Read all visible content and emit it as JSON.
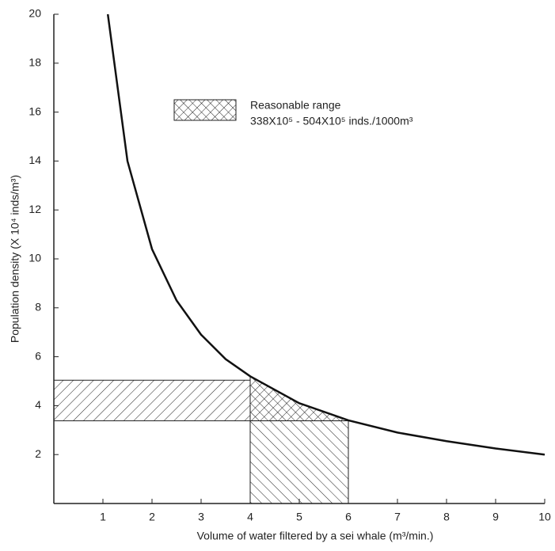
{
  "chart_data": {
    "type": "line",
    "xlabel": "Volume of water filtered by a sei whale (m³/min.)",
    "ylabel": "Population density (X 10⁴ inds/m³)",
    "x": [
      1.1,
      1.5,
      2,
      2.5,
      3,
      3.5,
      4,
      5,
      6,
      7,
      8,
      9,
      10
    ],
    "series": [
      {
        "color": "#111111",
        "values": [
          20,
          14,
          10.4,
          8.3,
          6.9,
          5.9,
          5.2,
          4.1,
          3.4,
          2.9,
          2.55,
          2.25,
          2.0
        ]
      }
    ],
    "xlim": [
      0,
      10
    ],
    "ylim": [
      0,
      20
    ],
    "xticks": [
      1,
      2,
      3,
      4,
      5,
      6,
      7,
      8,
      9,
      10
    ],
    "yticks": [
      2,
      4,
      6,
      8,
      10,
      12,
      14,
      16,
      18,
      20
    ],
    "legend": {
      "label": "Reasonable range",
      "sublabel": "338X10⁵ - 504X10⁵ inds./1000m³"
    },
    "range": {
      "ylow": 3.38,
      "yhigh": 5.04,
      "xlow": 4,
      "xhigh": 6
    }
  }
}
